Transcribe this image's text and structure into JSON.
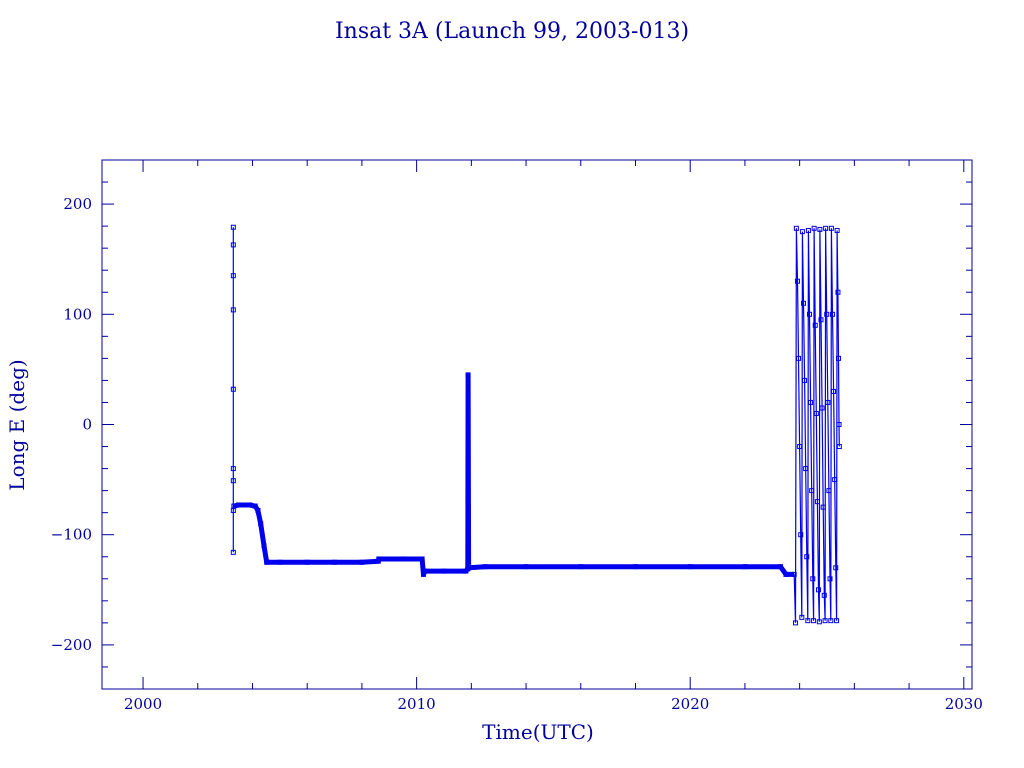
{
  "chart_data": {
    "type": "line",
    "title": "Insat 3A (Launch 99, 2003-013)",
    "xlabel": "Time(UTC)",
    "ylabel": "Long E (deg)",
    "xlim": [
      1998.5,
      2030.3
    ],
    "ylim": [
      -240,
      240
    ],
    "x_ticks": [
      2000,
      2010,
      2020,
      2030
    ],
    "x_tick_labels": [
      "2000",
      "2010",
      "2020",
      "2030"
    ],
    "y_ticks": [
      -200,
      -100,
      0,
      100,
      200
    ],
    "y_tick_labels": [
      "−200",
      "−100",
      "0",
      "100",
      "200"
    ],
    "grid": false,
    "colors": {
      "line": "#0000ee",
      "axis": "#00009a"
    },
    "series": [
      {
        "points": [
          [
            2003.3,
            -116
          ],
          [
            2003.3,
            179
          ],
          [
            2003.3,
            163
          ],
          [
            2003.3,
            135
          ],
          [
            2003.3,
            104
          ],
          [
            2003.3,
            32
          ],
          [
            2003.3,
            -40
          ],
          [
            2003.3,
            -51
          ],
          [
            2003.3,
            -78
          ],
          [
            2003.32,
            -74
          ],
          [
            2003.5,
            -73
          ],
          [
            2003.9,
            -73
          ],
          [
            2004.1,
            -74
          ],
          [
            2004.2,
            -78
          ],
          [
            2004.3,
            -90
          ],
          [
            2004.42,
            -110
          ],
          [
            2004.52,
            -125
          ],
          [
            2005.0,
            -125
          ],
          [
            2006.0,
            -125
          ],
          [
            2007.0,
            -125
          ],
          [
            2008.0,
            -125
          ],
          [
            2008.6,
            -124
          ],
          [
            2008.62,
            -122
          ],
          [
            2009.5,
            -122
          ],
          [
            2010.2,
            -122
          ],
          [
            2010.25,
            -136
          ],
          [
            2010.3,
            -133
          ],
          [
            2011.0,
            -133
          ],
          [
            2011.8,
            -133
          ],
          [
            2011.87,
            -131
          ],
          [
            2011.88,
            45
          ],
          [
            2011.9,
            -130
          ],
          [
            2012.5,
            -129
          ],
          [
            2014.0,
            -129
          ],
          [
            2016.0,
            -129
          ],
          [
            2018.0,
            -129
          ],
          [
            2020.0,
            -129
          ],
          [
            2022.0,
            -129
          ],
          [
            2023.3,
            -129
          ],
          [
            2023.5,
            -136
          ],
          [
            2023.8,
            -136
          ],
          [
            2023.85,
            -180
          ],
          [
            2023.88,
            178
          ],
          [
            2023.92,
            130
          ],
          [
            2023.96,
            60
          ],
          [
            2024.0,
            -20
          ],
          [
            2024.04,
            -100
          ],
          [
            2024.08,
            -175
          ],
          [
            2024.1,
            175
          ],
          [
            2024.14,
            110
          ],
          [
            2024.18,
            40
          ],
          [
            2024.22,
            -40
          ],
          [
            2024.26,
            -120
          ],
          [
            2024.3,
            -178
          ],
          [
            2024.32,
            176
          ],
          [
            2024.36,
            100
          ],
          [
            2024.4,
            20
          ],
          [
            2024.44,
            -60
          ],
          [
            2024.48,
            -140
          ],
          [
            2024.51,
            -178
          ],
          [
            2024.53,
            178
          ],
          [
            2024.57,
            90
          ],
          [
            2024.61,
            10
          ],
          [
            2024.65,
            -70
          ],
          [
            2024.69,
            -150
          ],
          [
            2024.72,
            -179
          ],
          [
            2024.74,
            177
          ],
          [
            2024.78,
            95
          ],
          [
            2024.82,
            15
          ],
          [
            2024.86,
            -75
          ],
          [
            2024.9,
            -155
          ],
          [
            2024.93,
            -178
          ],
          [
            2024.95,
            178
          ],
          [
            2024.99,
            100
          ],
          [
            2025.03,
            20
          ],
          [
            2025.07,
            -60
          ],
          [
            2025.11,
            -140
          ],
          [
            2025.14,
            -178
          ],
          [
            2025.16,
            178
          ],
          [
            2025.2,
            100
          ],
          [
            2025.24,
            30
          ],
          [
            2025.28,
            -50
          ],
          [
            2025.32,
            -130
          ],
          [
            2025.35,
            -178
          ],
          [
            2025.37,
            176
          ],
          [
            2025.4,
            120
          ],
          [
            2025.42,
            60
          ],
          [
            2025.44,
            0
          ],
          [
            2025.45,
            -20
          ]
        ]
      }
    ]
  }
}
